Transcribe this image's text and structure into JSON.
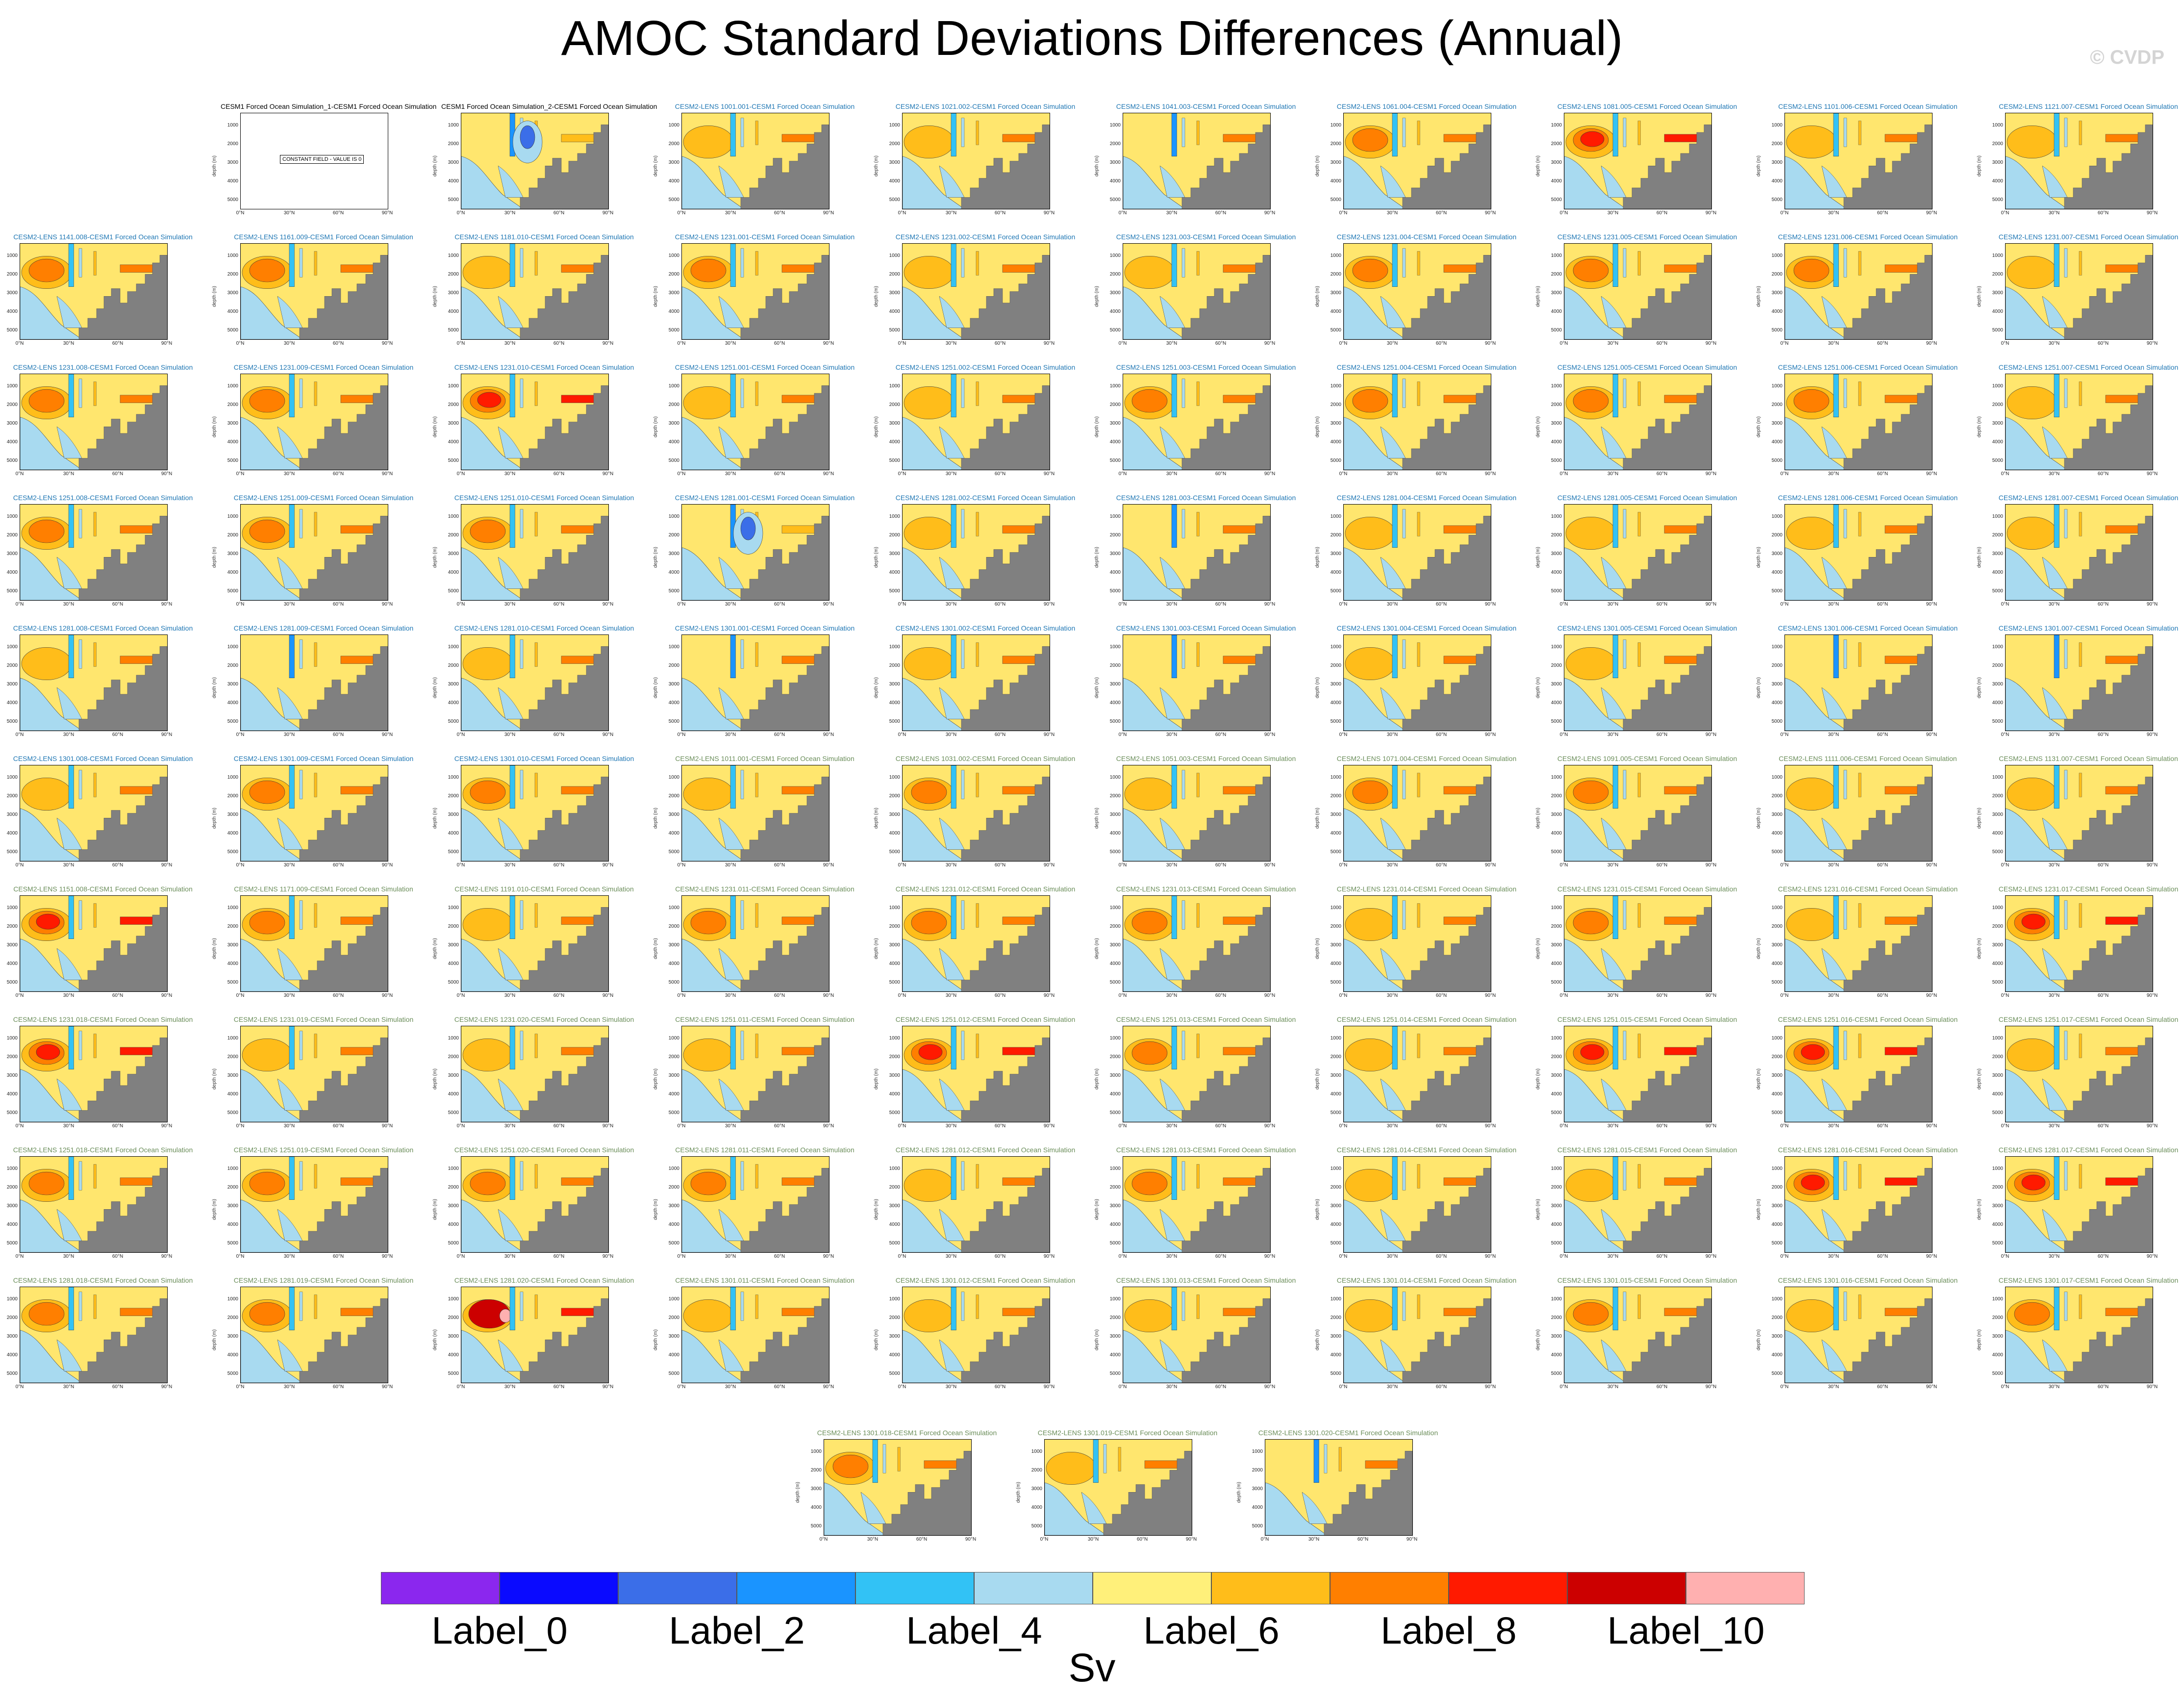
{
  "title": "AMOC Standard Deviations Differences (Annual)",
  "watermark": "© CVDP",
  "colorbar": {
    "colors": [
      "#8b27ee",
      "#0a0aff",
      "#3b6ee8",
      "#1a94ff",
      "#32c2f5",
      "#a8daf0",
      "#fff07a",
      "#ffbd1a",
      "#ff7f00",
      "#ff1a00",
      "#cc0000",
      "#ffb0b0"
    ],
    "labels": [
      "Label_0",
      "Label_2",
      "Label_4",
      "Label_6",
      "Label_8",
      "Label_10"
    ],
    "units": "Sv"
  },
  "axis": {
    "ylabel": "depth (m)",
    "yticks": [
      "1000",
      "2000",
      "3000",
      "4000",
      "5000"
    ],
    "xticks": [
      "0°N",
      "30°N",
      "60°N",
      "90°N"
    ]
  },
  "no_data_text": "CONSTANT FIELD - VALUE IS 0",
  "chart_data": {
    "type": "heatmap",
    "title": "AMOC Standard Deviations Differences (Annual)",
    "colorbar_units": "Sv",
    "colorbar_tick_labels": [
      "Label_0",
      "Label_2",
      "Label_4",
      "Label_6",
      "Label_8",
      "Label_10"
    ],
    "ylabel": "depth (m)",
    "x_ticks": [
      "0°N",
      "30°N",
      "60°N",
      "90°N"
    ],
    "y_ticks": [
      1000,
      2000,
      3000,
      4000,
      5000
    ],
    "panels": [
      {
        "title": "CESM1 Forced Ocean Simulation_1-CESM1 Forced Ocean Simulation",
        "color": "black",
        "nodata": true,
        "intensity": 0
      },
      {
        "title": "CESM1 Forced Ocean Simulation_2-CESM1 Forced Ocean Simulation",
        "color": "black",
        "intensity": -1
      },
      {
        "title": "CESM2-LENS 1001.001-CESM1 Forced Ocean Simulation",
        "color": "blue",
        "intensity": 1
      },
      {
        "title": "CESM2-LENS 1021.002-CESM1 Forced Ocean Simulation",
        "color": "blue",
        "intensity": 1
      },
      {
        "title": "CESM2-LENS 1041.003-CESM1 Forced Ocean Simulation",
        "color": "blue",
        "intensity": 0
      },
      {
        "title": "CESM2-LENS 1061.004-CESM1 Forced Ocean Simulation",
        "color": "blue",
        "intensity": 2
      },
      {
        "title": "CESM2-LENS 1081.005-CESM1 Forced Ocean Simulation",
        "color": "blue",
        "intensity": 3
      },
      {
        "title": "CESM2-LENS 1101.006-CESM1 Forced Ocean Simulation",
        "color": "blue",
        "intensity": 1
      },
      {
        "title": "CESM2-LENS 1121.007-CESM1 Forced Ocean Simulation",
        "color": "blue",
        "intensity": 1
      },
      {
        "title": "CESM2-LENS 1141.008-CESM1 Forced Ocean Simulation",
        "color": "blue",
        "intensity": 2
      },
      {
        "title": "CESM2-LENS 1161.009-CESM1 Forced Ocean Simulation",
        "color": "blue",
        "intensity": 2
      },
      {
        "title": "CESM2-LENS 1181.010-CESM1 Forced Ocean Simulation",
        "color": "blue",
        "intensity": 1
      },
      {
        "title": "CESM2-LENS 1231.001-CESM1 Forced Ocean Simulation",
        "color": "blue",
        "intensity": 2
      },
      {
        "title": "CESM2-LENS 1231.002-CESM1 Forced Ocean Simulation",
        "color": "blue",
        "intensity": 1
      },
      {
        "title": "CESM2-LENS 1231.003-CESM1 Forced Ocean Simulation",
        "color": "blue",
        "intensity": 1
      },
      {
        "title": "CESM2-LENS 1231.004-CESM1 Forced Ocean Simulation",
        "color": "blue",
        "intensity": 2
      },
      {
        "title": "CESM2-LENS 1231.005-CESM1 Forced Ocean Simulation",
        "color": "blue",
        "intensity": 2
      },
      {
        "title": "CESM2-LENS 1231.006-CESM1 Forced Ocean Simulation",
        "color": "blue",
        "intensity": 2
      },
      {
        "title": "CESM2-LENS 1231.007-CESM1 Forced Ocean Simulation",
        "color": "blue",
        "intensity": 1
      },
      {
        "title": "CESM2-LENS 1231.008-CESM1 Forced Ocean Simulation",
        "color": "blue",
        "intensity": 2
      },
      {
        "title": "CESM2-LENS 1231.009-CESM1 Forced Ocean Simulation",
        "color": "blue",
        "intensity": 2
      },
      {
        "title": "CESM2-LENS 1231.010-CESM1 Forced Ocean Simulation",
        "color": "blue",
        "intensity": 3
      },
      {
        "title": "CESM2-LENS 1251.001-CESM1 Forced Ocean Simulation",
        "color": "blue",
        "intensity": 1
      },
      {
        "title": "CESM2-LENS 1251.002-CESM1 Forced Ocean Simulation",
        "color": "blue",
        "intensity": 1
      },
      {
        "title": "CESM2-LENS 1251.003-CESM1 Forced Ocean Simulation",
        "color": "blue",
        "intensity": 2
      },
      {
        "title": "CESM2-LENS 1251.004-CESM1 Forced Ocean Simulation",
        "color": "blue",
        "intensity": 2
      },
      {
        "title": "CESM2-LENS 1251.005-CESM1 Forced Ocean Simulation",
        "color": "blue",
        "intensity": 2
      },
      {
        "title": "CESM2-LENS 1251.006-CESM1 Forced Ocean Simulation",
        "color": "blue",
        "intensity": 2
      },
      {
        "title": "CESM2-LENS 1251.007-CESM1 Forced Ocean Simulation",
        "color": "blue",
        "intensity": 1
      },
      {
        "title": "CESM2-LENS 1251.008-CESM1 Forced Ocean Simulation",
        "color": "blue",
        "intensity": 2
      },
      {
        "title": "CESM2-LENS 1251.009-CESM1 Forced Ocean Simulation",
        "color": "blue",
        "intensity": 2
      },
      {
        "title": "CESM2-LENS 1251.010-CESM1 Forced Ocean Simulation",
        "color": "blue",
        "intensity": 2
      },
      {
        "title": "CESM2-LENS 1281.001-CESM1 Forced Ocean Simulation",
        "color": "blue",
        "intensity": -1
      },
      {
        "title": "CESM2-LENS 1281.002-CESM1 Forced Ocean Simulation",
        "color": "blue",
        "intensity": 1
      },
      {
        "title": "CESM2-LENS 1281.003-CESM1 Forced Ocean Simulation",
        "color": "blue",
        "intensity": 0
      },
      {
        "title": "CESM2-LENS 1281.004-CESM1 Forced Ocean Simulation",
        "color": "blue",
        "intensity": 1
      },
      {
        "title": "CESM2-LENS 1281.005-CESM1 Forced Ocean Simulation",
        "color": "blue",
        "intensity": 1
      },
      {
        "title": "CESM2-LENS 1281.006-CESM1 Forced Ocean Simulation",
        "color": "blue",
        "intensity": 1
      },
      {
        "title": "CESM2-LENS 1281.007-CESM1 Forced Ocean Simulation",
        "color": "blue",
        "intensity": 1
      },
      {
        "title": "CESM2-LENS 1281.008-CESM1 Forced Ocean Simulation",
        "color": "blue",
        "intensity": 1
      },
      {
        "title": "CESM2-LENS 1281.009-CESM1 Forced Ocean Simulation",
        "color": "blue",
        "intensity": 0
      },
      {
        "title": "CESM2-LENS 1281.010-CESM1 Forced Ocean Simulation",
        "color": "blue",
        "intensity": 1
      },
      {
        "title": "CESM2-LENS 1301.001-CESM1 Forced Ocean Simulation",
        "color": "blue",
        "intensity": 0
      },
      {
        "title": "CESM2-LENS 1301.002-CESM1 Forced Ocean Simulation",
        "color": "blue",
        "intensity": 1
      },
      {
        "title": "CESM2-LENS 1301.003-CESM1 Forced Ocean Simulation",
        "color": "blue",
        "intensity": 0
      },
      {
        "title": "CESM2-LENS 1301.004-CESM1 Forced Ocean Simulation",
        "color": "blue",
        "intensity": 1
      },
      {
        "title": "CESM2-LENS 1301.005-CESM1 Forced Ocean Simulation",
        "color": "blue",
        "intensity": 1
      },
      {
        "title": "CESM2-LENS 1301.006-CESM1 Forced Ocean Simulation",
        "color": "blue",
        "intensity": 0
      },
      {
        "title": "CESM2-LENS 1301.007-CESM1 Forced Ocean Simulation",
        "color": "blue",
        "intensity": 0
      },
      {
        "title": "CESM2-LENS 1301.008-CESM1 Forced Ocean Simulation",
        "color": "blue",
        "intensity": 1
      },
      {
        "title": "CESM2-LENS 1301.009-CESM1 Forced Ocean Simulation",
        "color": "blue",
        "intensity": 2
      },
      {
        "title": "CESM2-LENS 1301.010-CESM1 Forced Ocean Simulation",
        "color": "blue",
        "intensity": 2
      },
      {
        "title": "CESM2-LENS 1011.001-CESM1 Forced Ocean Simulation",
        "color": "green",
        "intensity": 1
      },
      {
        "title": "CESM2-LENS 1031.002-CESM1 Forced Ocean Simulation",
        "color": "green",
        "intensity": 2
      },
      {
        "title": "CESM2-LENS 1051.003-CESM1 Forced Ocean Simulation",
        "color": "green",
        "intensity": 1
      },
      {
        "title": "CESM2-LENS 1071.004-CESM1 Forced Ocean Simulation",
        "color": "green",
        "intensity": 2
      },
      {
        "title": "CESM2-LENS 1091.005-CESM1 Forced Ocean Simulation",
        "color": "green",
        "intensity": 2
      },
      {
        "title": "CESM2-LENS 1111.006-CESM1 Forced Ocean Simulation",
        "color": "green",
        "intensity": 1
      },
      {
        "title": "CESM2-LENS 1131.007-CESM1 Forced Ocean Simulation",
        "color": "green",
        "intensity": 1
      },
      {
        "title": "CESM2-LENS 1151.008-CESM1 Forced Ocean Simulation",
        "color": "green",
        "intensity": 3
      },
      {
        "title": "CESM2-LENS 1171.009-CESM1 Forced Ocean Simulation",
        "color": "green",
        "intensity": 2
      },
      {
        "title": "CESM2-LENS 1191.010-CESM1 Forced Ocean Simulation",
        "color": "green",
        "intensity": 1
      },
      {
        "title": "CESM2-LENS 1231.011-CESM1 Forced Ocean Simulation",
        "color": "green",
        "intensity": 2
      },
      {
        "title": "CESM2-LENS 1231.012-CESM1 Forced Ocean Simulation",
        "color": "green",
        "intensity": 2
      },
      {
        "title": "CESM2-LENS 1231.013-CESM1 Forced Ocean Simulation",
        "color": "green",
        "intensity": 2
      },
      {
        "title": "CESM2-LENS 1231.014-CESM1 Forced Ocean Simulation",
        "color": "green",
        "intensity": 1
      },
      {
        "title": "CESM2-LENS 1231.015-CESM1 Forced Ocean Simulation",
        "color": "green",
        "intensity": 2
      },
      {
        "title": "CESM2-LENS 1231.016-CESM1 Forced Ocean Simulation",
        "color": "green",
        "intensity": 1
      },
      {
        "title": "CESM2-LENS 1231.017-CESM1 Forced Ocean Simulation",
        "color": "green",
        "intensity": 3
      },
      {
        "title": "CESM2-LENS 1231.018-CESM1 Forced Ocean Simulation",
        "color": "green",
        "intensity": 3
      },
      {
        "title": "CESM2-LENS 1231.019-CESM1 Forced Ocean Simulation",
        "color": "green",
        "intensity": 1
      },
      {
        "title": "CESM2-LENS 1231.020-CESM1 Forced Ocean Simulation",
        "color": "green",
        "intensity": 1
      },
      {
        "title": "CESM2-LENS 1251.011-CESM1 Forced Ocean Simulation",
        "color": "green",
        "intensity": 1
      },
      {
        "title": "CESM2-LENS 1251.012-CESM1 Forced Ocean Simulation",
        "color": "green",
        "intensity": 3
      },
      {
        "title": "CESM2-LENS 1251.013-CESM1 Forced Ocean Simulation",
        "color": "green",
        "intensity": 2
      },
      {
        "title": "CESM2-LENS 1251.014-CESM1 Forced Ocean Simulation",
        "color": "green",
        "intensity": 1
      },
      {
        "title": "CESM2-LENS 1251.015-CESM1 Forced Ocean Simulation",
        "color": "green",
        "intensity": 3
      },
      {
        "title": "CESM2-LENS 1251.016-CESM1 Forced Ocean Simulation",
        "color": "green",
        "intensity": 3
      },
      {
        "title": "CESM2-LENS 1251.017-CESM1 Forced Ocean Simulation",
        "color": "green",
        "intensity": 1
      },
      {
        "title": "CESM2-LENS 1251.018-CESM1 Forced Ocean Simulation",
        "color": "green",
        "intensity": 2
      },
      {
        "title": "CESM2-LENS 1251.019-CESM1 Forced Ocean Simulation",
        "color": "green",
        "intensity": 2
      },
      {
        "title": "CESM2-LENS 1251.020-CESM1 Forced Ocean Simulation",
        "color": "green",
        "intensity": 2
      },
      {
        "title": "CESM2-LENS 1281.011-CESM1 Forced Ocean Simulation",
        "color": "green",
        "intensity": 2
      },
      {
        "title": "CESM2-LENS 1281.012-CESM1 Forced Ocean Simulation",
        "color": "green",
        "intensity": 1
      },
      {
        "title": "CESM2-LENS 1281.013-CESM1 Forced Ocean Simulation",
        "color": "green",
        "intensity": 2
      },
      {
        "title": "CESM2-LENS 1281.014-CESM1 Forced Ocean Simulation",
        "color": "green",
        "intensity": 1
      },
      {
        "title": "CESM2-LENS 1281.015-CESM1 Forced Ocean Simulation",
        "color": "green",
        "intensity": 1
      },
      {
        "title": "CESM2-LENS 1281.016-CESM1 Forced Ocean Simulation",
        "color": "green",
        "intensity": 3
      },
      {
        "title": "CESM2-LENS 1281.017-CESM1 Forced Ocean Simulation",
        "color": "green",
        "intensity": 3
      },
      {
        "title": "CESM2-LENS 1281.018-CESM1 Forced Ocean Simulation",
        "color": "green",
        "intensity": 2
      },
      {
        "title": "CESM2-LENS 1281.019-CESM1 Forced Ocean Simulation",
        "color": "green",
        "intensity": 2
      },
      {
        "title": "CESM2-LENS 1281.020-CESM1 Forced Ocean Simulation",
        "color": "green",
        "intensity": 4
      },
      {
        "title": "CESM2-LENS 1301.011-CESM1 Forced Ocean Simulation",
        "color": "green",
        "intensity": 1
      },
      {
        "title": "CESM2-LENS 1301.012-CESM1 Forced Ocean Simulation",
        "color": "green",
        "intensity": 1
      },
      {
        "title": "CESM2-LENS 1301.013-CESM1 Forced Ocean Simulation",
        "color": "green",
        "intensity": 1
      },
      {
        "title": "CESM2-LENS 1301.014-CESM1 Forced Ocean Simulation",
        "color": "green",
        "intensity": 1
      },
      {
        "title": "CESM2-LENS 1301.015-CESM1 Forced Ocean Simulation",
        "color": "green",
        "intensity": 2
      },
      {
        "title": "CESM2-LENS 1301.016-CESM1 Forced Ocean Simulation",
        "color": "green",
        "intensity": 1
      },
      {
        "title": "CESM2-LENS 1301.017-CESM1 Forced Ocean Simulation",
        "color": "green",
        "intensity": 2
      },
      {
        "title": "CESM2-LENS 1301.018-CESM1 Forced Ocean Simulation",
        "color": "green",
        "intensity": 2
      },
      {
        "title": "CESM2-LENS 1301.019-CESM1 Forced Ocean Simulation",
        "color": "green",
        "intensity": 1
      },
      {
        "title": "CESM2-LENS 1301.020-CESM1 Forced Ocean Simulation",
        "color": "green",
        "intensity": 0
      }
    ]
  }
}
